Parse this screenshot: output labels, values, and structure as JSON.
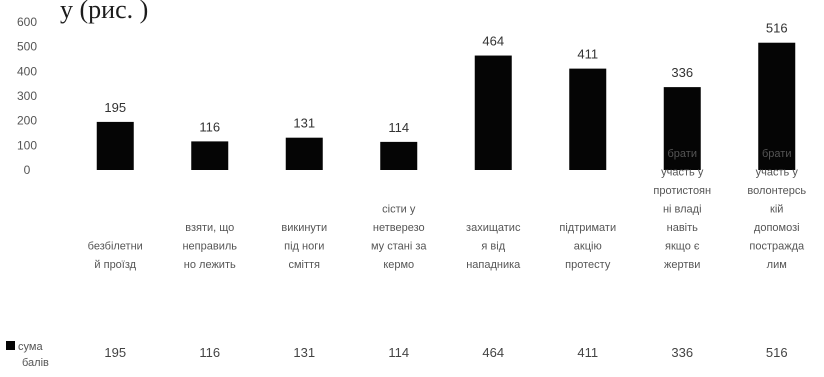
{
  "header_fragment": "у (рис. )",
  "chart_data": {
    "type": "bar",
    "categories": [
      [
        "безбілетни",
        "й проїзд"
      ],
      [
        "взяти, що",
        "неправиль",
        "но лежить"
      ],
      [
        "викинути",
        "під ноги",
        "сміття"
      ],
      [
        "сісти у",
        "нетверезо",
        "му стані за",
        "кермо"
      ],
      [
        "захищатис",
        "я від",
        "нападника"
      ],
      [
        "підтримати",
        "акцію",
        "протесту"
      ],
      [
        "брати",
        "участь у",
        "протистоян",
        "ні владі",
        "навіть",
        "якщо є",
        "жертви"
      ],
      [
        "брати",
        "участь у",
        "волонтерсь",
        "кій",
        "допомозі",
        "постражда",
        "лим"
      ]
    ],
    "series": [
      {
        "name": "сума балів",
        "values": [
          195,
          116,
          131,
          114,
          464,
          411,
          336,
          516
        ]
      }
    ],
    "ylim": [
      0,
      600
    ],
    "yticks": [
      "600",
      "500",
      "400",
      "300",
      "200",
      "100",
      "0"
    ],
    "grid": false,
    "legend_position": "bottom-left",
    "data_table": {
      "row_label": [
        "сума",
        "балів"
      ],
      "values": [
        "195",
        "116",
        "131",
        "114",
        "464",
        "411",
        "336",
        "516"
      ]
    },
    "bar_color": "#050505"
  }
}
